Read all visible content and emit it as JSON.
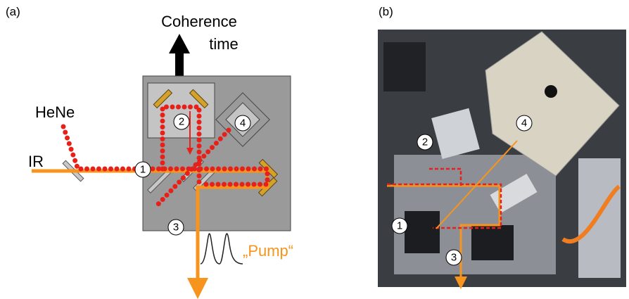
{
  "panel_a": {
    "label": "(a)",
    "title_lines": [
      "Coherence",
      "time"
    ],
    "sources": [
      "HeNe",
      "IR"
    ],
    "markers": [
      "1",
      "2",
      "3",
      "4"
    ],
    "output": "„Pump“"
  },
  "panel_b": {
    "label": "(b)",
    "markers": [
      "1",
      "2",
      "3",
      "4"
    ]
  }
}
